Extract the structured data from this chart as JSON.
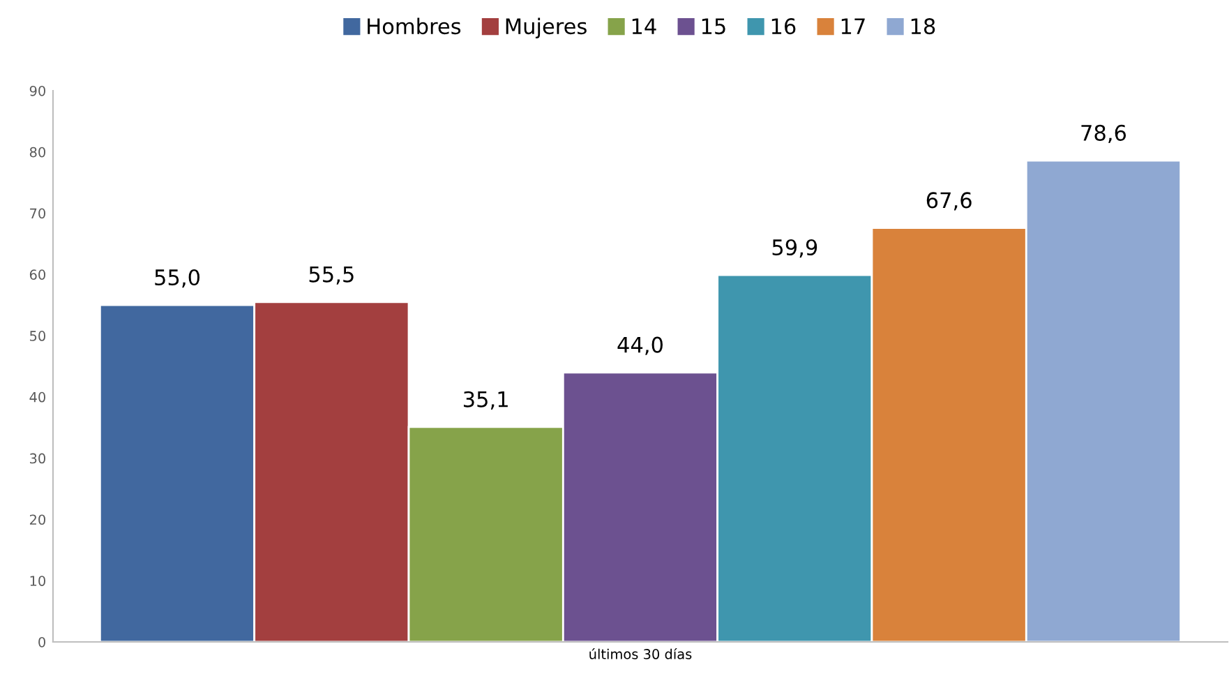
{
  "chart_data": {
    "type": "bar",
    "categories": [
      "últimos 30 días"
    ],
    "series": [
      {
        "name": "Hombres",
        "color": "#41689f",
        "values": [
          55.0
        ],
        "value_labels": [
          "55,0"
        ]
      },
      {
        "name": "Mujeres",
        "color": "#a33f3f",
        "values": [
          55.5
        ],
        "value_labels": [
          "55,5"
        ]
      },
      {
        "name": "14",
        "color": "#86a34a",
        "values": [
          35.1
        ],
        "value_labels": [
          "35,1"
        ]
      },
      {
        "name": "15",
        "color": "#6c5190",
        "values": [
          44.0
        ],
        "value_labels": [
          "44,0"
        ]
      },
      {
        "name": "16",
        "color": "#3f96ae",
        "values": [
          59.9
        ],
        "value_labels": [
          "59,9"
        ]
      },
      {
        "name": "17",
        "color": "#d9823b",
        "values": [
          67.6
        ],
        "value_labels": [
          "67,6"
        ]
      },
      {
        "name": "18",
        "color": "#8fa8d2",
        "values": [
          78.6
        ],
        "value_labels": [
          "78,6"
        ]
      }
    ],
    "ylim": [
      0,
      90
    ],
    "yticks": [
      0,
      10,
      20,
      30,
      40,
      50,
      60,
      70,
      80,
      90
    ],
    "grid": false,
    "legend": "top"
  }
}
